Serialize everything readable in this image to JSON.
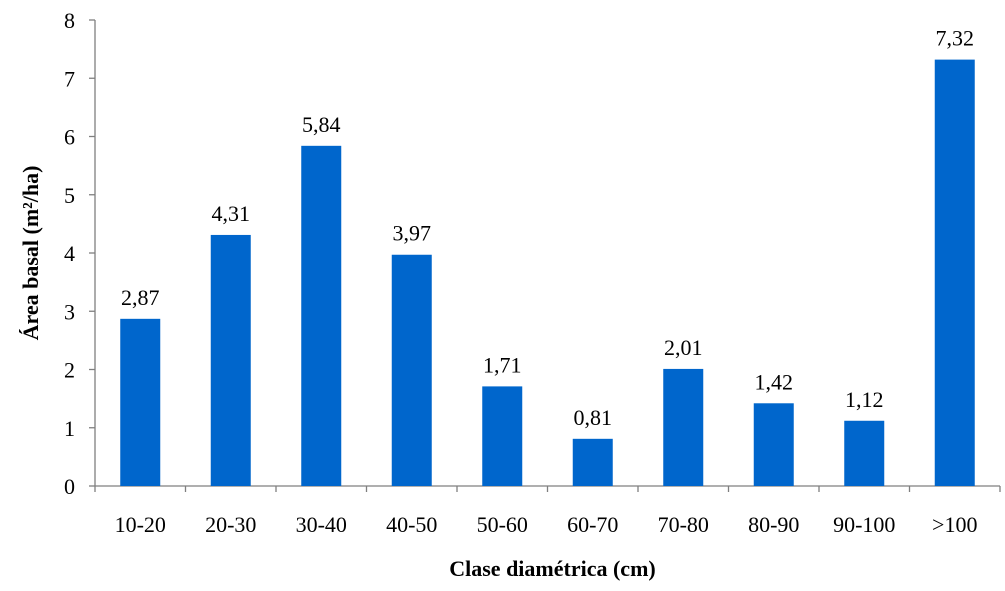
{
  "chart_data": {
    "type": "bar",
    "categories": [
      "10-20",
      "20-30",
      "30-40",
      "40-50",
      "50-60",
      "60-70",
      "70-80",
      "80-90",
      "90-100",
      ">100"
    ],
    "values": [
      2.87,
      4.31,
      5.84,
      3.97,
      1.71,
      0.81,
      2.01,
      1.42,
      1.12,
      7.32
    ],
    "value_labels": [
      "2,87",
      "4,31",
      "5,84",
      "3,97",
      "1,71",
      "0,81",
      "2,01",
      "1,42",
      "1,12",
      "7,32"
    ],
    "title": "",
    "xlabel": "Clase diamétrica (cm)",
    "ylabel": "Área basal (m²/ha)",
    "ylim": [
      0,
      8
    ],
    "yticks": [
      0,
      1,
      2,
      3,
      4,
      5,
      6,
      7,
      8
    ],
    "ytick_labels": [
      "0",
      "1",
      "2",
      "3",
      "4",
      "5",
      "6",
      "7",
      "8"
    ],
    "grid": false,
    "legend": "none",
    "bar_color": "#0066CC"
  }
}
